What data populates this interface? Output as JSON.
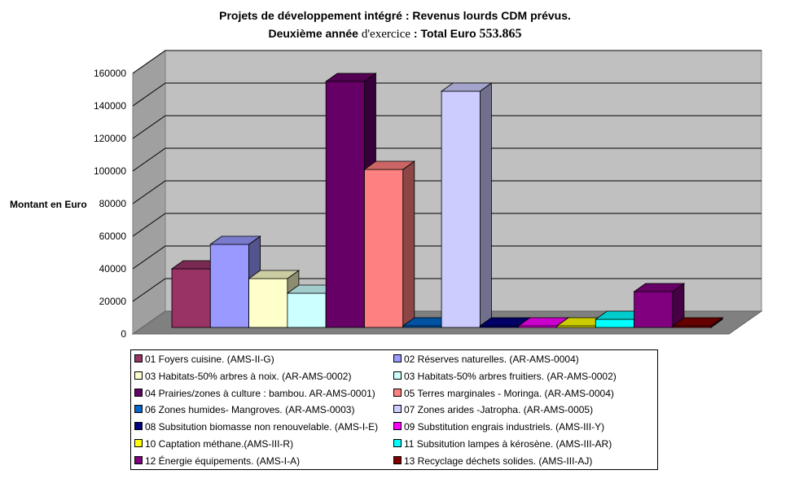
{
  "title": {
    "line1": "Projets de développement intégré : Revenus lourds CDM prévus.",
    "line2_a": "Deuxième année",
    "line2_b": "d'exercice",
    "line2_c": ": Total Euro",
    "line2_d": "553.865"
  },
  "chart_data": {
    "type": "bar",
    "ylabel": "Montant en Euro",
    "ylim": [
      0,
      160000
    ],
    "yticks": [
      0,
      20000,
      40000,
      60000,
      80000,
      100000,
      120000,
      140000,
      160000
    ],
    "grid": true,
    "legend_position": "bottom",
    "series": [
      {
        "name": "01 Foyers cuisine. (AMS-II-G)",
        "value": 36000,
        "color": "#993366"
      },
      {
        "name": "02 Réserves naturelles. (AR-AMS-0004)",
        "value": 51000,
        "color": "#9999ff"
      },
      {
        "name": "03 Habitats-50% arbres à noix. (AR-AMS-0002)",
        "value": 30000,
        "color": "#ffffcc"
      },
      {
        "name": "03 Habitats-50% arbres fruitiers. (AR-AMS-0002)",
        "value": 21000,
        "color": "#ccffff"
      },
      {
        "name": "04 Prairies/zones à culture : bambou. AR-AMS-0001)",
        "value": 151000,
        "color": "#660066"
      },
      {
        "name": "05 Terres marginales - Moringa. (AR-AMS-0004)",
        "value": 97000,
        "color": "#ff8080"
      },
      {
        "name": "06 Zones humides- Mangroves. (AR-AMS-0003)",
        "value": 0,
        "color": "#0066cc"
      },
      {
        "name": "07 Zones arides -Jatropha. (AR-AMS-0005)",
        "value": 145000,
        "color": "#ccccff"
      },
      {
        "name": "08 Subsitution biomasse non renouvelable. (AMS-I-E)",
        "value": 0,
        "color": "#000080"
      },
      {
        "name": "09 Substitution engrais industriels. (AMS-III-Y)",
        "value": 0,
        "color": "#ff00ff"
      },
      {
        "name": "10 Captation méthane.(AMS-III-R)",
        "value": 0,
        "color": "#ffff00"
      },
      {
        "name": "11 Subsitution lampes à kérosène. (AMS-III-AR)",
        "value": 5000,
        "color": "#00ffff"
      },
      {
        "name": "12 Énergie équipements. (AMS-I-A)",
        "value": 22000,
        "color": "#800080"
      },
      {
        "name": "13 Recyclage déchets solides. (AMS-III-AJ)",
        "value": 0,
        "color": "#800000"
      }
    ]
  }
}
